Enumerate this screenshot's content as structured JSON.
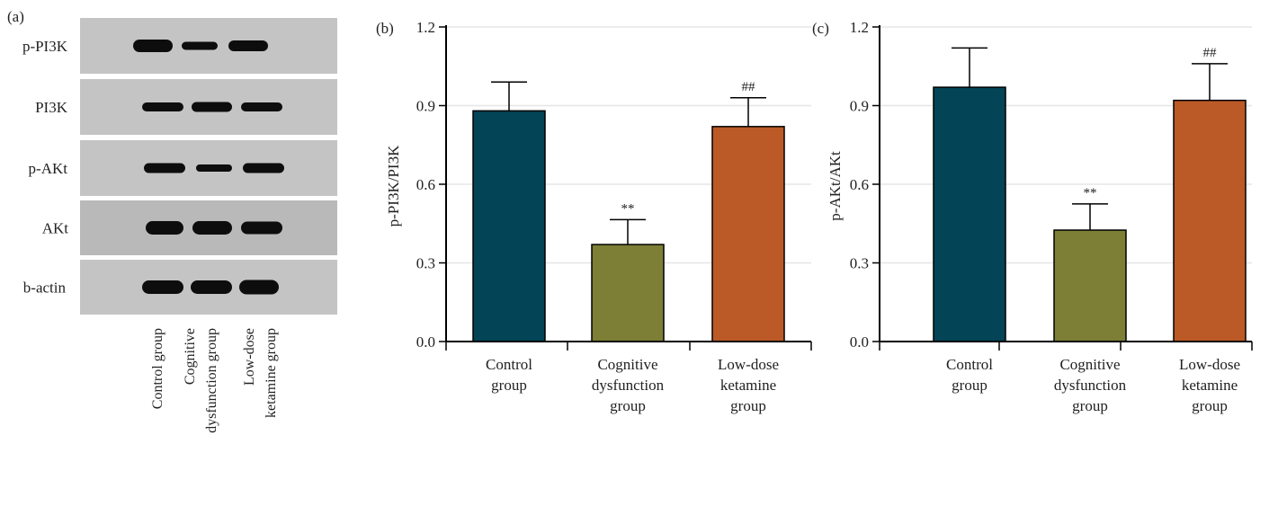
{
  "panel_a": {
    "label": "(a)",
    "rows": [
      "p-PI3K",
      "PI3K",
      "p-AKt",
      "AKt",
      "b-actin"
    ],
    "lanes": [
      [
        "Control group"
      ],
      [
        "Cognitive",
        "dysfunction group"
      ],
      [
        "Low-dose",
        "ketamine group"
      ]
    ]
  },
  "chart_data": [
    {
      "type": "bar",
      "panel_label": "(b)",
      "ylabel": "p-PI3K/PI3K",
      "ylim": [
        0,
        1.2
      ],
      "yticks": [
        "0.0",
        "0.3",
        "0.6",
        "0.9",
        "1.2"
      ],
      "grid": true,
      "categories": [
        [
          "Control",
          "group"
        ],
        [
          "Cognitive",
          "dysfunction",
          "group"
        ],
        [
          "Low-dose",
          "ketamine",
          "group"
        ]
      ],
      "values": [
        0.88,
        0.37,
        0.82
      ],
      "errors": [
        0.11,
        0.095,
        0.11
      ],
      "annotations": [
        "",
        "**",
        "##"
      ],
      "colors": [
        "#034457",
        "#7c7f35",
        "#bb5a27"
      ]
    },
    {
      "type": "bar",
      "panel_label": "(c)",
      "ylabel": "p-AKt/AKt",
      "ylim": [
        0,
        1.2
      ],
      "yticks": [
        "0.0",
        "0.3",
        "0.6",
        "0.9",
        "1.2"
      ],
      "grid": true,
      "categories": [
        [
          "Control",
          "group"
        ],
        [
          "Cognitive",
          "dysfunction",
          "group"
        ],
        [
          "Low-dose",
          "ketamine",
          "group"
        ]
      ],
      "values": [
        0.97,
        0.425,
        0.92
      ],
      "errors": [
        0.15,
        0.1,
        0.14
      ],
      "annotations": [
        "",
        "**",
        "##"
      ],
      "colors": [
        "#034457",
        "#7c7f35",
        "#bb5a27"
      ]
    }
  ]
}
